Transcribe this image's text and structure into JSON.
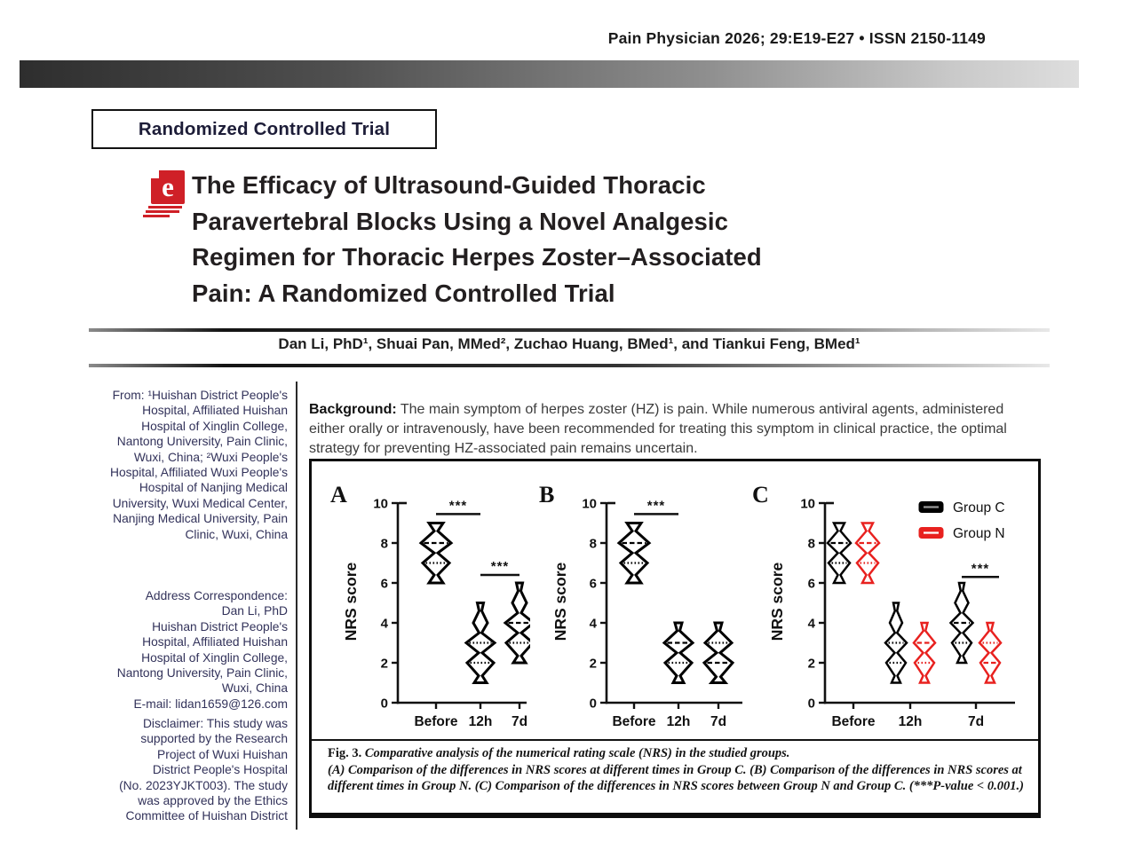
{
  "header": {
    "journal_line": "Pain Physician 2026; 29:E19-E27 • ISSN 2150-1149"
  },
  "article": {
    "type_label": "Randomized Controlled Trial",
    "logo_letter": "e",
    "title_lines": [
      "The Efficacy of Ultrasound-Guided Thoracic",
      "Paravertebral Blocks Using a Novel Analgesic",
      "Regimen for Thoracic Herpes Zoster–Associated",
      "Pain: A Randomized Controlled Trial"
    ],
    "authors": "Dan Li, PhD¹, Shuai Pan, MMed², Zuchao Huang, BMed¹, and Tiankui Feng, BMed¹"
  },
  "sidebar": {
    "from_lines": [
      "From: ¹Huishan District People's",
      "Hospital, Affiliated Huishan",
      "Hospital of Xinglin College,",
      "Nantong University, Pain Clinic,",
      "Wuxi, China; ²Wuxi People's",
      "Hospital, Affiliated Wuxi People's",
      "Hospital of Nanjing Medical",
      "University, Wuxi Medical Center,",
      "Nanjing Medical University, Pain",
      "Clinic, Wuxi, China"
    ],
    "correspondence_lines": [
      "Address Correspondence:",
      "Dan Li, PhD",
      "Huishan District People's",
      "Hospital, Affiliated Huishan",
      "Hospital of Xinglin College,",
      "Nantong University, Pain Clinic,",
      "Wuxi, China",
      "E-mail: lidan1659@126.com"
    ],
    "disclaimer_lines": [
      "Disclaimer: This study was",
      "supported by the Research",
      "Project of Wuxi Huishan",
      "District People's Hospital",
      "(No. 2023YJKT003). The study",
      "was approved by the Ethics",
      "Committee of Huishan District"
    ]
  },
  "abstract": {
    "background_label": "Background:",
    "background_text": " The main symptom of herpes zoster (HZ) is pain. While numerous antiviral agents, administered either orally or intravenously, have been recommended for treating this symptom in clinical practice, the optimal strategy for preventing HZ-associated pain remains uncertain."
  },
  "figure": {
    "caption_prefix": "Fig. 3.",
    "caption_title": "Comparative analysis of the numerical rating scale (NRS) in the studied groups.",
    "caption_body": "(A) Comparison of the differences in NRS scores at different times in Group C. (B) Comparison of the differences in NRS scores at different times in Group N. (C) Comparison of the differences in NRS scores between Group N and Group C. (***P-value < 0.001.)"
  },
  "colors": {
    "group_c": "#000000",
    "group_n": "#e8211f",
    "logo_red": "#cf2027",
    "sidebar_text": "#32325a"
  },
  "chart_data": [
    {
      "panel": "A",
      "type": "violin",
      "title": "NRS over time in Group C",
      "xlabel": "",
      "ylabel": "NRS score",
      "ylim": [
        0,
        10
      ],
      "yticks": [
        0,
        2,
        4,
        6,
        8,
        10
      ],
      "categories": [
        "Before",
        "12h",
        "7d"
      ],
      "series": [
        {
          "name": "Group C",
          "color": "#000000",
          "violins": [
            {
              "category": "Before",
              "range": [
                6,
                9
              ],
              "peaks": [
                8,
                7
              ],
              "lines": [
                {
                  "value": 8,
                  "style": "dashed"
                },
                {
                  "value": 7,
                  "style": "dotted"
                }
              ],
              "shape": [
                [
                  9,
                  8
                ],
                [
                  8.6,
                  2
                ],
                [
                  8,
                  17
                ],
                [
                  7.5,
                  2
                ],
                [
                  7,
                  15
                ],
                [
                  6.4,
                  2
                ],
                [
                  6,
                  8
                ]
              ]
            },
            {
              "category": "12h",
              "range": [
                1,
                5
              ],
              "peaks": [
                3,
                2
              ],
              "lines": [
                {
                  "value": 3,
                  "style": "dotted"
                },
                {
                  "value": 2,
                  "style": "dotted"
                }
              ],
              "shape": [
                [
                  5,
                  3.5
                ],
                [
                  4.6,
                  1.5
                ],
                [
                  4,
                  8
                ],
                [
                  3.5,
                  1.5
                ],
                [
                  3,
                  16
                ],
                [
                  2.5,
                  2
                ],
                [
                  2,
                  15
                ],
                [
                  1.35,
                  2
                ],
                [
                  1,
                  7
                ]
              ]
            },
            {
              "category": "7d",
              "range": [
                2,
                6
              ],
              "peaks": [
                4,
                3
              ],
              "lines": [
                {
                  "value": 4,
                  "style": "dashed"
                },
                {
                  "value": 3,
                  "style": "dotted"
                }
              ],
              "shape": [
                [
                  6,
                  3.5
                ],
                [
                  5.6,
                  1.5
                ],
                [
                  5,
                  8
                ],
                [
                  4.5,
                  2
                ],
                [
                  4,
                  16
                ],
                [
                  3.5,
                  2
                ],
                [
                  3,
                  15
                ],
                [
                  2.35,
                  2
                ],
                [
                  2,
                  7
                ]
              ]
            }
          ]
        }
      ],
      "significance": [
        {
          "i1": 0,
          "i2": 1,
          "height": 9.45,
          "label": "***"
        },
        {
          "i1": 1,
          "i2": 2,
          "height": 6.4,
          "label": "***"
        }
      ]
    },
    {
      "panel": "B",
      "type": "violin",
      "title": "NRS over time in Group N",
      "xlabel": "",
      "ylabel": "NRS score",
      "ylim": [
        0,
        10
      ],
      "yticks": [
        0,
        2,
        4,
        6,
        8,
        10
      ],
      "categories": [
        "Before",
        "12h",
        "7d"
      ],
      "series": [
        {
          "name": "Group N",
          "color": "#000000",
          "violins": [
            {
              "category": "Before",
              "range": [
                6,
                9
              ],
              "peaks": [
                8,
                7
              ],
              "lines": [
                {
                  "value": 8,
                  "style": "dashed"
                },
                {
                  "value": 7,
                  "style": "dotted"
                }
              ],
              "shape": [
                [
                  9,
                  8
                ],
                [
                  8.6,
                  2
                ],
                [
                  8,
                  17
                ],
                [
                  7.5,
                  2
                ],
                [
                  7,
                  15
                ],
                [
                  6.4,
                  2
                ],
                [
                  6,
                  8
                ]
              ]
            },
            {
              "category": "12h",
              "range": [
                1,
                4
              ],
              "peaks": [
                3,
                2
              ],
              "lines": [
                {
                  "value": 3,
                  "style": "dashed"
                },
                {
                  "value": 2,
                  "style": "dotted"
                }
              ],
              "shape": [
                [
                  4,
                  4
                ],
                [
                  3.6,
                  1.5
                ],
                [
                  3,
                  16
                ],
                [
                  2.5,
                  2
                ],
                [
                  2,
                  15
                ],
                [
                  1.35,
                  2
                ],
                [
                  1,
                  6
                ]
              ]
            },
            {
              "category": "7d",
              "range": [
                1,
                4
              ],
              "peaks": [
                3,
                2
              ],
              "lines": [
                {
                  "value": 3,
                  "style": "dotted"
                },
                {
                  "value": 2,
                  "style": "dashed"
                }
              ],
              "shape": [
                [
                  4,
                  4
                ],
                [
                  3.6,
                  1.5
                ],
                [
                  3,
                  15
                ],
                [
                  2.5,
                  2
                ],
                [
                  2,
                  16
                ],
                [
                  1.3,
                  2.5
                ],
                [
                  1,
                  8
                ]
              ]
            }
          ]
        }
      ],
      "significance": [
        {
          "i1": 0,
          "i2": 1,
          "height": 9.45,
          "label": "***"
        }
      ]
    },
    {
      "panel": "C",
      "type": "violin",
      "title": "NRS comparison between Group C and Group N",
      "xlabel": "",
      "ylabel": "NRS score",
      "ylim": [
        0,
        10
      ],
      "yticks": [
        0,
        2,
        4,
        6,
        8,
        10
      ],
      "categories": [
        "Before",
        "12h",
        "7d"
      ],
      "legend": {
        "position": "top-right",
        "entries": [
          {
            "label": "Group C",
            "color": "#000000"
          },
          {
            "label": "Group N",
            "color": "#e8211f"
          }
        ]
      },
      "series": [
        {
          "name": "Group C",
          "color": "#000000",
          "violins": [
            {
              "category": "Before",
              "range": [
                6,
                9
              ],
              "peaks": [
                8,
                7
              ],
              "lines": [
                {
                  "value": 8,
                  "style": "dashed"
                },
                {
                  "value": 7,
                  "style": "dotted"
                }
              ],
              "shape": [
                [
                  9,
                  6
                ],
                [
                  8.6,
                  1.5
                ],
                [
                  8,
                  13
                ],
                [
                  7.5,
                  1.5
                ],
                [
                  7,
                  12
                ],
                [
                  6.4,
                  1.5
                ],
                [
                  6,
                  6
                ]
              ]
            },
            {
              "category": "12h",
              "range": [
                1,
                5
              ],
              "peaks": [
                3,
                2
              ],
              "lines": [
                {
                  "value": 3,
                  "style": "dotted"
                },
                {
                  "value": 2,
                  "style": "dotted"
                }
              ],
              "shape": [
                [
                  5,
                  3
                ],
                [
                  4.6,
                  1.2
                ],
                [
                  4,
                  7
                ],
                [
                  3.5,
                  1.2
                ],
                [
                  3,
                  12
                ],
                [
                  2.5,
                  1.5
                ],
                [
                  2,
                  11
                ],
                [
                  1.35,
                  1.5
                ],
                [
                  1,
                  5
                ]
              ]
            },
            {
              "category": "7d",
              "range": [
                2,
                6
              ],
              "peaks": [
                4,
                3
              ],
              "lines": [
                {
                  "value": 4,
                  "style": "dashed"
                },
                {
                  "value": 3,
                  "style": "dotted"
                }
              ],
              "shape": [
                [
                  6,
                  3
                ],
                [
                  5.6,
                  1.2
                ],
                [
                  5,
                  7.5
                ],
                [
                  4.5,
                  1.5
                ],
                [
                  4,
                  12.5
                ],
                [
                  3.5,
                  1.5
                ],
                [
                  3,
                  11
                ],
                [
                  2.35,
                  1.5
                ],
                [
                  2,
                  5
                ]
              ]
            }
          ]
        },
        {
          "name": "Group N",
          "color": "#e8211f",
          "violins": [
            {
              "category": "Before",
              "range": [
                6,
                9
              ],
              "peaks": [
                8,
                7
              ],
              "lines": [
                {
                  "value": 8,
                  "style": "dashed"
                },
                {
                  "value": 7,
                  "style": "dotted"
                }
              ],
              "shape": [
                [
                  9,
                  6
                ],
                [
                  8.6,
                  1.5
                ],
                [
                  8,
                  13
                ],
                [
                  7.5,
                  1.5
                ],
                [
                  7,
                  12
                ],
                [
                  6.4,
                  1.5
                ],
                [
                  6,
                  6
                ]
              ]
            },
            {
              "category": "12h",
              "range": [
                1,
                4
              ],
              "peaks": [
                3,
                2
              ],
              "lines": [
                {
                  "value": 3,
                  "style": "dashed"
                },
                {
                  "value": 2,
                  "style": "dotted"
                }
              ],
              "shape": [
                [
                  4,
                  3.5
                ],
                [
                  3.6,
                  1.2
                ],
                [
                  3,
                  12
                ],
                [
                  2.5,
                  1.5
                ],
                [
                  2,
                  11
                ],
                [
                  1.35,
                  1.5
                ],
                [
                  1,
                  5
                ]
              ]
            },
            {
              "category": "7d",
              "range": [
                1,
                4
              ],
              "peaks": [
                3,
                2
              ],
              "lines": [
                {
                  "value": 3,
                  "style": "dotted"
                },
                {
                  "value": 2,
                  "style": "dashed"
                }
              ],
              "shape": [
                [
                  4,
                  3.5
                ],
                [
                  3.6,
                  1.2
                ],
                [
                  3,
                  12
                ],
                [
                  2.5,
                  1.5
                ],
                [
                  2,
                  11
                ],
                [
                  1.35,
                  1.5
                ],
                [
                  1,
                  5
                ]
              ]
            }
          ]
        }
      ],
      "significance": [
        {
          "i1": 2,
          "i2": 5,
          "height": 6.3,
          "label": "***"
        }
      ]
    }
  ]
}
